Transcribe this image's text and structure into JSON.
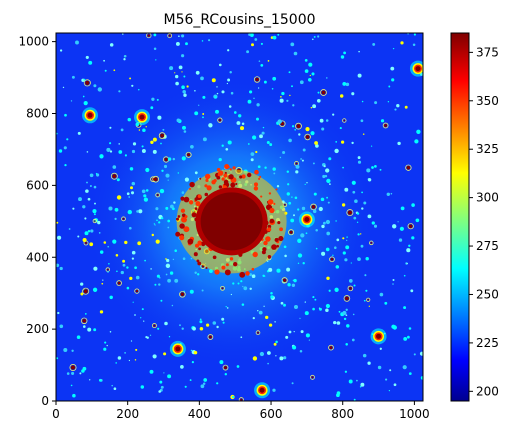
{
  "figure": {
    "title": "M56_RCousins_15000"
  },
  "image_axes": {
    "x_ticks": [
      "0",
      "200",
      "400",
      "600",
      "800",
      "1000"
    ],
    "x_tick_values": [
      0,
      200,
      400,
      600,
      800,
      1000
    ],
    "y_ticks": [
      "0",
      "200",
      "400",
      "600",
      "800",
      "1000"
    ],
    "y_tick_values": [
      0,
      200,
      400,
      600,
      800,
      1000
    ],
    "x_range": [
      0,
      1024
    ],
    "y_range": [
      0,
      1024
    ],
    "origin": "lower-left"
  },
  "colorbar": {
    "ticks": [
      "200",
      "225",
      "250",
      "275",
      "300",
      "325",
      "350",
      "375"
    ],
    "tick_values": [
      200,
      225,
      250,
      275,
      300,
      325,
      350,
      375
    ],
    "range": [
      195,
      385
    ],
    "colormap": "jet"
  },
  "image_description": {
    "cluster_center": [
      490,
      500
    ],
    "bright_stars": [
      [
        700,
        505
      ],
      [
        575,
        30
      ],
      [
        900,
        180
      ],
      [
        95,
        795
      ],
      [
        240,
        790
      ],
      [
        340,
        145
      ],
      [
        1010,
        925
      ]
    ]
  },
  "colors": {
    "jet_dark_blue": "#00008f",
    "jet_blue": "#0000ff",
    "jet_cyan": "#00ffff",
    "jet_yellow": "#ffff00",
    "jet_red": "#ff0000",
    "jet_dark_red": "#800000",
    "background_blue": "#0a2cf2"
  }
}
